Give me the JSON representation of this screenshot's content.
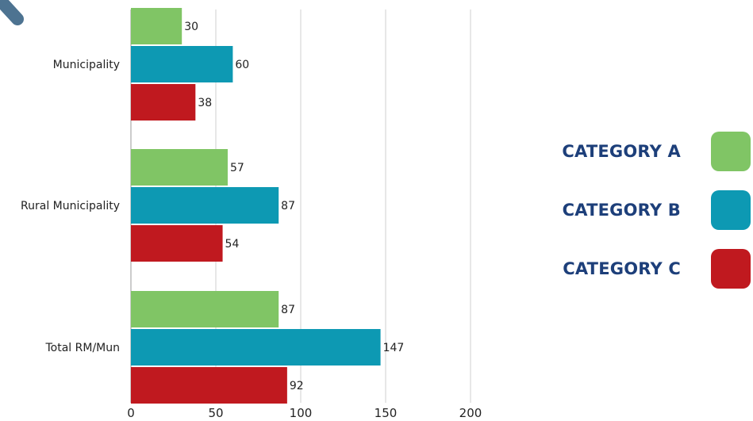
{
  "chart_data": {
    "type": "bar",
    "orientation": "horizontal",
    "categories": [
      "Municipality",
      "Rural Municipality",
      "Total RM/Mun"
    ],
    "series": [
      {
        "name": "CATEGORY A",
        "color": "#80c565",
        "values": [
          30,
          57,
          87
        ]
      },
      {
        "name": "CATEGORY B",
        "color": "#0d99b3",
        "values": [
          60,
          87,
          147
        ]
      },
      {
        "name": "CATEGORY C",
        "color": "#c0191f",
        "values": [
          38,
          54,
          92
        ]
      }
    ],
    "x_ticks": [
      0,
      50,
      100,
      150,
      200
    ],
    "xlim": [
      0,
      200
    ],
    "grid": true,
    "legend_position": "right",
    "title": "",
    "xlabel": "",
    "ylabel": ""
  },
  "decoration": {
    "icon": "pen-stroke-icon",
    "color": "#4d7391"
  }
}
